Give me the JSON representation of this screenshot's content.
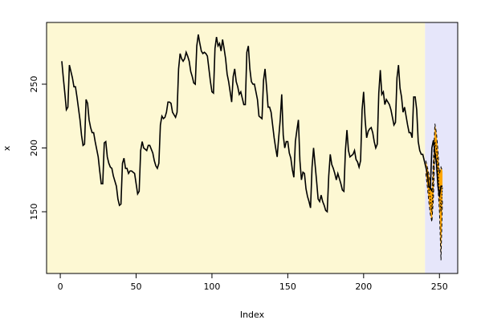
{
  "chart_data": {
    "type": "line",
    "xlabel": "Index",
    "ylabel": "x",
    "x": [
      1,
      2,
      3,
      4,
      5,
      6,
      7,
      8,
      9,
      10,
      11,
      12,
      13,
      14,
      15,
      16,
      17,
      18,
      19,
      20,
      21,
      22,
      23,
      24,
      25,
      26,
      27,
      28,
      29,
      30,
      31,
      32,
      33,
      34,
      35,
      36,
      37,
      38,
      39,
      40,
      41,
      42,
      43,
      44,
      45,
      46,
      47,
      48,
      49,
      50,
      51,
      52,
      53,
      54,
      55,
      56,
      57,
      58,
      59,
      60,
      61,
      62,
      63,
      64,
      65,
      66,
      67,
      68,
      69,
      70,
      71,
      72,
      73,
      74,
      75,
      76,
      77,
      78,
      79,
      80,
      81,
      82,
      83,
      84,
      85,
      86,
      87,
      88,
      89,
      90,
      91,
      92,
      93,
      94,
      95,
      96,
      97,
      98,
      99,
      100,
      101,
      102,
      103,
      104,
      105,
      106,
      107,
      108,
      109,
      110,
      111,
      112,
      113,
      114,
      115,
      116,
      117,
      118,
      119,
      120,
      121,
      122,
      123,
      124,
      125,
      126,
      127,
      128,
      129,
      130,
      131,
      132,
      133,
      134,
      135,
      136,
      137,
      138,
      139,
      140,
      141,
      142,
      143,
      144,
      145,
      146,
      147,
      148,
      149,
      150,
      151,
      152,
      153,
      154,
      155,
      156,
      157,
      158,
      159,
      160,
      161,
      162,
      163,
      164,
      165,
      166,
      167,
      168,
      169,
      170,
      171,
      172,
      173,
      174,
      175,
      176,
      177,
      178,
      179,
      180,
      181,
      182,
      183,
      184,
      185,
      186,
      187,
      188,
      189,
      190,
      191,
      192,
      193,
      194,
      195,
      196,
      197,
      198,
      199,
      200,
      201,
      202,
      203,
      204,
      205,
      206,
      207,
      208,
      209,
      210,
      211,
      212,
      213,
      214,
      215,
      216,
      217,
      218,
      219,
      220,
      221,
      222,
      223,
      224,
      225,
      226,
      227,
      228,
      229,
      230,
      231,
      232,
      233,
      234,
      235,
      236,
      237,
      238,
      239,
      240,
      241,
      242,
      243,
      244,
      245,
      246,
      247,
      248,
      249,
      250,
      251,
      252
    ],
    "series": [
      {
        "color": "#000000",
        "values": [
          268,
          255,
          243,
          230,
          232,
          265,
          260,
          255,
          248,
          248,
          240,
          231,
          222,
          210,
          202,
          203,
          238,
          235,
          222,
          216,
          212,
          212,
          205,
          199,
          193,
          182,
          172,
          172,
          204,
          205,
          193,
          188,
          185,
          184,
          178,
          174,
          170,
          160,
          155,
          156,
          188,
          192,
          184,
          184,
          180,
          182,
          182,
          181,
          180,
          172,
          164,
          166,
          198,
          205,
          200,
          199,
          198,
          202,
          202,
          199,
          196,
          190,
          186,
          184,
          188,
          218,
          225,
          223,
          224,
          228,
          236,
          236,
          235,
          228,
          226,
          224,
          228,
          262,
          274,
          270,
          268,
          270,
          275,
          272,
          268,
          260,
          256,
          251,
          250,
          280,
          289,
          282,
          276,
          274,
          275,
          274,
          272,
          262,
          252,
          244,
          243,
          278,
          287,
          280,
          282,
          276,
          285,
          278,
          270,
          258,
          252,
          244,
          236,
          256,
          262,
          252,
          248,
          242,
          244,
          239,
          234,
          234,
          275,
          280,
          262,
          252,
          250,
          250,
          244,
          238,
          225,
          224,
          223,
          253,
          262,
          248,
          232,
          232,
          228,
          218,
          208,
          200,
          193,
          208,
          222,
          242,
          210,
          200,
          205,
          205,
          196,
          192,
          183,
          177,
          205,
          214,
          222,
          190,
          175,
          181,
          180,
          168,
          162,
          158,
          153,
          185,
          200,
          187,
          174,
          160,
          158,
          163,
          158,
          155,
          151,
          150,
          178,
          195,
          187,
          184,
          180,
          175,
          180,
          176,
          172,
          167,
          166,
          198,
          214,
          198,
          193,
          194,
          195,
          198,
          191,
          189,
          185,
          190,
          230,
          244,
          222,
          208,
          213,
          215,
          216,
          212,
          205,
          200,
          203,
          243,
          261,
          242,
          244,
          234,
          238,
          236,
          234,
          230,
          224,
          218,
          220,
          255,
          265,
          247,
          240,
          228,
          232,
          225,
          218,
          212,
          212,
          208,
          240,
          240,
          230,
          205,
          198,
          195,
          195,
          190,
          185,
          180,
          170,
          168,
          200,
          206,
          196,
          188,
          170,
          162,
          170,
          170
        ]
      }
    ],
    "forecast": {
      "color": "#ffa500",
      "x": [
        241,
        242,
        243,
        244,
        245,
        246,
        247,
        248,
        249,
        250,
        251,
        252
      ],
      "values": [
        185,
        178,
        168,
        160,
        150,
        175,
        205,
        200,
        185,
        165,
        150,
        170
      ],
      "lower": [
        180,
        170,
        158,
        148,
        142,
        160,
        198,
        190,
        170,
        150,
        112,
        160
      ],
      "upper": [
        190,
        185,
        180,
        172,
        165,
        190,
        219,
        212,
        198,
        180,
        185,
        182
      ]
    },
    "shade_from": 240.5,
    "past_color": "#fdf8d3",
    "future_color": "#e6e6fa",
    "xlim": [
      -9.04,
      262.04
    ],
    "ylim": [
      101.6,
      298.4
    ],
    "xticks": [
      0,
      50,
      100,
      150,
      200,
      250
    ],
    "yticks": [
      150,
      200,
      250
    ]
  }
}
